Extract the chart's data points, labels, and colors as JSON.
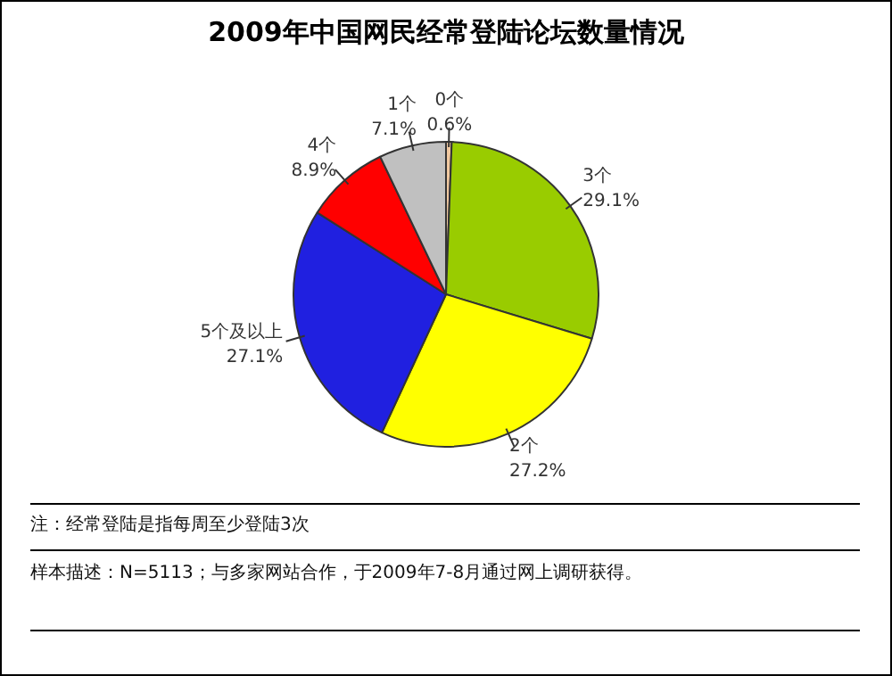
{
  "chart_data": {
    "type": "pie",
    "title": "2009年中国网民经常登陆论坛数量情况",
    "categories": [
      "0个",
      "3个",
      "2个",
      "5个及以上",
      "4个",
      "1个"
    ],
    "values": [
      0.6,
      29.1,
      27.2,
      27.1,
      8.9,
      7.1
    ],
    "value_labels": [
      "0.6%",
      "29.1%",
      "27.2%",
      "27.1%",
      "8.9%",
      "7.1%"
    ],
    "colors": [
      "#f0c8a0",
      "#99cc00",
      "#ffff00",
      "#2020e0",
      "#ff0000",
      "#c0c0c0"
    ],
    "annotations": [
      "注：经常登陆是指每周至少登陆3次",
      "样本描述：N=5113；与多家网站合作，于2009年7-8月通过网上调研获得。"
    ]
  }
}
